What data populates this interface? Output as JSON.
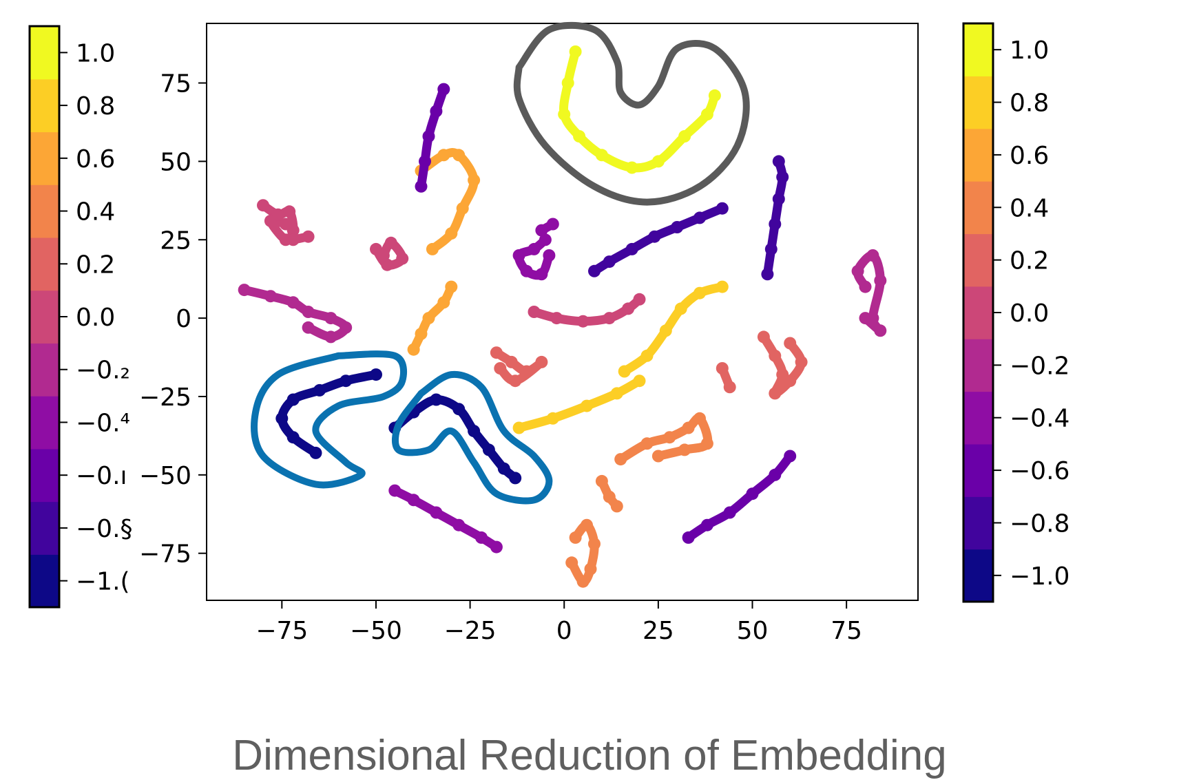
{
  "caption": "Dimensional Reduction of Embedding",
  "chart_data": {
    "type": "scatter",
    "title": "",
    "xlabel": "",
    "ylabel": "",
    "xlim": [
      -95,
      94
    ],
    "ylim": [
      -90,
      94
    ],
    "xticks": [
      -75,
      -50,
      -25,
      0,
      25,
      50,
      75
    ],
    "yticks": [
      -75,
      -50,
      -25,
      0,
      25,
      50,
      75
    ],
    "colormap": "plasma",
    "colorbar": {
      "range": [
        -1.1,
        1.1
      ],
      "ticks": [
        -1.0,
        -0.8,
        -0.6,
        -0.4,
        -0.2,
        0.0,
        0.2,
        0.4,
        0.6,
        0.8,
        1.0
      ],
      "tick_labels_left": [
        "−1.(",
        "−0.§",
        "−0.ı",
        "−0.⁴",
        "−0.₂",
        "0.0",
        "0.2",
        "0.4",
        "0.6",
        "0.8",
        "1.0"
      ],
      "tick_labels_right": [
        "−1.0",
        "−0.8",
        "−0.6",
        "−0.4",
        "−0.2",
        "0.0",
        "0.2",
        "0.4",
        "0.6",
        "0.8",
        "1.0"
      ],
      "bands": [
        "#0d0887",
        "#41049d",
        "#6a00a8",
        "#8f0da4",
        "#b12a90",
        "#cc4778",
        "#e16462",
        "#f2844b",
        "#fca636",
        "#fcce25",
        "#f0f921"
      ]
    },
    "clusters": [
      {
        "value": 1.0,
        "points": [
          [
            3,
            85
          ],
          [
            1,
            75
          ],
          [
            0,
            65
          ],
          [
            4,
            58
          ],
          [
            10,
            52
          ],
          [
            18,
            48
          ],
          [
            25,
            50
          ],
          [
            32,
            58
          ],
          [
            38,
            65
          ],
          [
            40,
            71
          ]
        ]
      },
      {
        "value": 0.8,
        "points": [
          [
            -12,
            -35
          ],
          [
            -3,
            -32
          ],
          [
            6,
            -28
          ],
          [
            14,
            -24
          ],
          [
            20,
            -20
          ]
        ]
      },
      {
        "value": 0.8,
        "points": [
          [
            16,
            -17
          ],
          [
            22,
            -12
          ],
          [
            27,
            -4
          ],
          [
            31,
            3
          ],
          [
            36,
            8
          ],
          [
            42,
            10
          ]
        ]
      },
      {
        "value": 0.6,
        "points": [
          [
            -38,
            47
          ],
          [
            -32,
            52
          ],
          [
            -28,
            52
          ],
          [
            -24,
            44
          ],
          [
            -27,
            35
          ],
          [
            -30,
            27
          ],
          [
            -35,
            22
          ]
        ]
      },
      {
        "value": 0.6,
        "points": [
          [
            -30,
            10
          ],
          [
            -32,
            5
          ],
          [
            -36,
            0
          ],
          [
            -38,
            -5
          ],
          [
            -40,
            -10
          ]
        ]
      },
      {
        "value": 0.4,
        "points": [
          [
            15,
            -45
          ],
          [
            22,
            -40
          ],
          [
            28,
            -38
          ],
          [
            33,
            -35
          ],
          [
            36,
            -32
          ],
          [
            38,
            -40
          ],
          [
            32,
            -42
          ],
          [
            25,
            -44
          ]
        ]
      },
      {
        "value": 0.4,
        "points": [
          [
            10,
            -52
          ],
          [
            12,
            -57
          ],
          [
            14,
            -60
          ]
        ]
      },
      {
        "value": 0.4,
        "points": [
          [
            3,
            -70
          ],
          [
            6,
            -66
          ],
          [
            8,
            -72
          ],
          [
            7,
            -80
          ],
          [
            5,
            -84
          ],
          [
            2,
            -78
          ]
        ]
      },
      {
        "value": 0.2,
        "points": [
          [
            -18,
            -11
          ],
          [
            -14,
            -14
          ],
          [
            -10,
            -17
          ],
          [
            -6,
            -14
          ],
          [
            -13,
            -20
          ],
          [
            -17,
            -16
          ]
        ]
      },
      {
        "value": 0.2,
        "points": [
          [
            53,
            -6
          ],
          [
            56,
            -12
          ],
          [
            58,
            -18
          ],
          [
            56,
            -24
          ],
          [
            60,
            -20
          ],
          [
            63,
            -14
          ],
          [
            60,
            -8
          ]
        ]
      },
      {
        "value": 0.2,
        "points": [
          [
            42,
            -16
          ],
          [
            44,
            -22
          ]
        ]
      },
      {
        "value": 0.0,
        "points": [
          [
            -80,
            36
          ],
          [
            -76,
            33
          ],
          [
            -73,
            34
          ],
          [
            -72,
            28
          ],
          [
            -74,
            25
          ],
          [
            -78,
            31
          ],
          [
            -74,
            30
          ]
        ]
      },
      {
        "value": 0.0,
        "points": [
          [
            -50,
            22
          ],
          [
            -47,
            17
          ],
          [
            -43,
            19
          ],
          [
            -46,
            24
          ],
          [
            -48,
            20
          ]
        ]
      },
      {
        "value": 0.0,
        "points": [
          [
            -72,
            25
          ],
          [
            -68,
            26
          ]
        ]
      },
      {
        "value": 0.0,
        "points": [
          [
            -8,
            2
          ],
          [
            -2,
            0
          ],
          [
            5,
            -1
          ],
          [
            12,
            0
          ],
          [
            17,
            3
          ],
          [
            20,
            6
          ]
        ]
      },
      {
        "value": -0.2,
        "points": [
          [
            -85,
            9
          ],
          [
            -78,
            7
          ],
          [
            -72,
            5
          ],
          [
            -68,
            2
          ],
          [
            -62,
            0
          ],
          [
            -58,
            -3
          ],
          [
            -62,
            -6
          ],
          [
            -68,
            -3
          ]
        ]
      },
      {
        "value": -0.2,
        "points": [
          [
            80,
            10
          ],
          [
            78,
            15
          ],
          [
            82,
            20
          ],
          [
            84,
            12
          ],
          [
            82,
            0
          ],
          [
            84,
            -4
          ],
          [
            80,
            0
          ]
        ]
      },
      {
        "value": -0.4,
        "points": [
          [
            -5,
            25
          ],
          [
            -8,
            22
          ],
          [
            -12,
            20
          ],
          [
            -10,
            15
          ],
          [
            -6,
            14
          ],
          [
            -4,
            20
          ]
        ]
      },
      {
        "value": -0.4,
        "points": [
          [
            -3,
            30
          ],
          [
            -6,
            28
          ]
        ]
      },
      {
        "value": -0.4,
        "points": [
          [
            -45,
            -55
          ],
          [
            -40,
            -58
          ],
          [
            -34,
            -62
          ],
          [
            -28,
            -66
          ],
          [
            -22,
            -70
          ],
          [
            -18,
            -73
          ]
        ]
      },
      {
        "value": -0.6,
        "points": [
          [
            -32,
            73
          ],
          [
            -34,
            66
          ],
          [
            -36,
            58
          ],
          [
            -37,
            50
          ],
          [
            -38,
            42
          ]
        ]
      },
      {
        "value": -0.6,
        "points": [
          [
            33,
            -70
          ],
          [
            38,
            -66
          ],
          [
            44,
            -62
          ],
          [
            50,
            -56
          ],
          [
            56,
            -50
          ],
          [
            60,
            -44
          ]
        ]
      },
      {
        "value": -0.8,
        "points": [
          [
            8,
            15
          ],
          [
            12,
            18
          ],
          [
            18,
            22
          ],
          [
            24,
            26
          ],
          [
            30,
            29
          ],
          [
            36,
            32
          ],
          [
            42,
            35
          ]
        ]
      },
      {
        "value": -0.8,
        "points": [
          [
            57,
            50
          ],
          [
            58,
            45
          ],
          [
            57,
            38
          ],
          [
            56,
            30
          ],
          [
            55,
            22
          ],
          [
            54,
            14
          ]
        ]
      },
      {
        "value": -1.0,
        "points": [
          [
            -50,
            -18
          ],
          [
            -58,
            -20
          ],
          [
            -65,
            -23
          ],
          [
            -72,
            -26
          ],
          [
            -75,
            -32
          ],
          [
            -72,
            -38
          ],
          [
            -66,
            -43
          ]
        ]
      },
      {
        "value": -1.0,
        "points": [
          [
            -45,
            -35
          ],
          [
            -40,
            -30
          ],
          [
            -34,
            -26
          ],
          [
            -28,
            -29
          ],
          [
            -24,
            -36
          ],
          [
            -20,
            -42
          ],
          [
            -16,
            -48
          ],
          [
            -13,
            -51
          ]
        ]
      }
    ],
    "enclosures": [
      {
        "color": "#5a5a5a",
        "points": [
          [
            -12,
            80
          ],
          [
            -4,
            92
          ],
          [
            8,
            92
          ],
          [
            14,
            82
          ],
          [
            15,
            72
          ],
          [
            20,
            68
          ],
          [
            25,
            74
          ],
          [
            30,
            86
          ],
          [
            40,
            86
          ],
          [
            48,
            72
          ],
          [
            46,
            55
          ],
          [
            36,
            42
          ],
          [
            22,
            37
          ],
          [
            8,
            42
          ],
          [
            -5,
            55
          ],
          [
            -12,
            70
          ],
          [
            -12,
            80
          ]
        ]
      },
      {
        "color": "#0a72b0",
        "points": [
          [
            -60,
            -12
          ],
          [
            -45,
            -12
          ],
          [
            -43,
            -20
          ],
          [
            -48,
            -25
          ],
          [
            -60,
            -28
          ],
          [
            -66,
            -36
          ],
          [
            -58,
            -46
          ],
          [
            -54,
            -50
          ],
          [
            -66,
            -53
          ],
          [
            -80,
            -44
          ],
          [
            -82,
            -30
          ],
          [
            -76,
            -18
          ],
          [
            -60,
            -12
          ]
        ]
      },
      {
        "color": "#0a72b0",
        "points": [
          [
            -38,
            -24
          ],
          [
            -30,
            -18
          ],
          [
            -22,
            -22
          ],
          [
            -16,
            -36
          ],
          [
            -8,
            -44
          ],
          [
            -4,
            -52
          ],
          [
            -8,
            -58
          ],
          [
            -18,
            -56
          ],
          [
            -24,
            -46
          ],
          [
            -30,
            -36
          ],
          [
            -36,
            -42
          ],
          [
            -44,
            -42
          ],
          [
            -44,
            -34
          ],
          [
            -38,
            -24
          ]
        ]
      }
    ]
  }
}
